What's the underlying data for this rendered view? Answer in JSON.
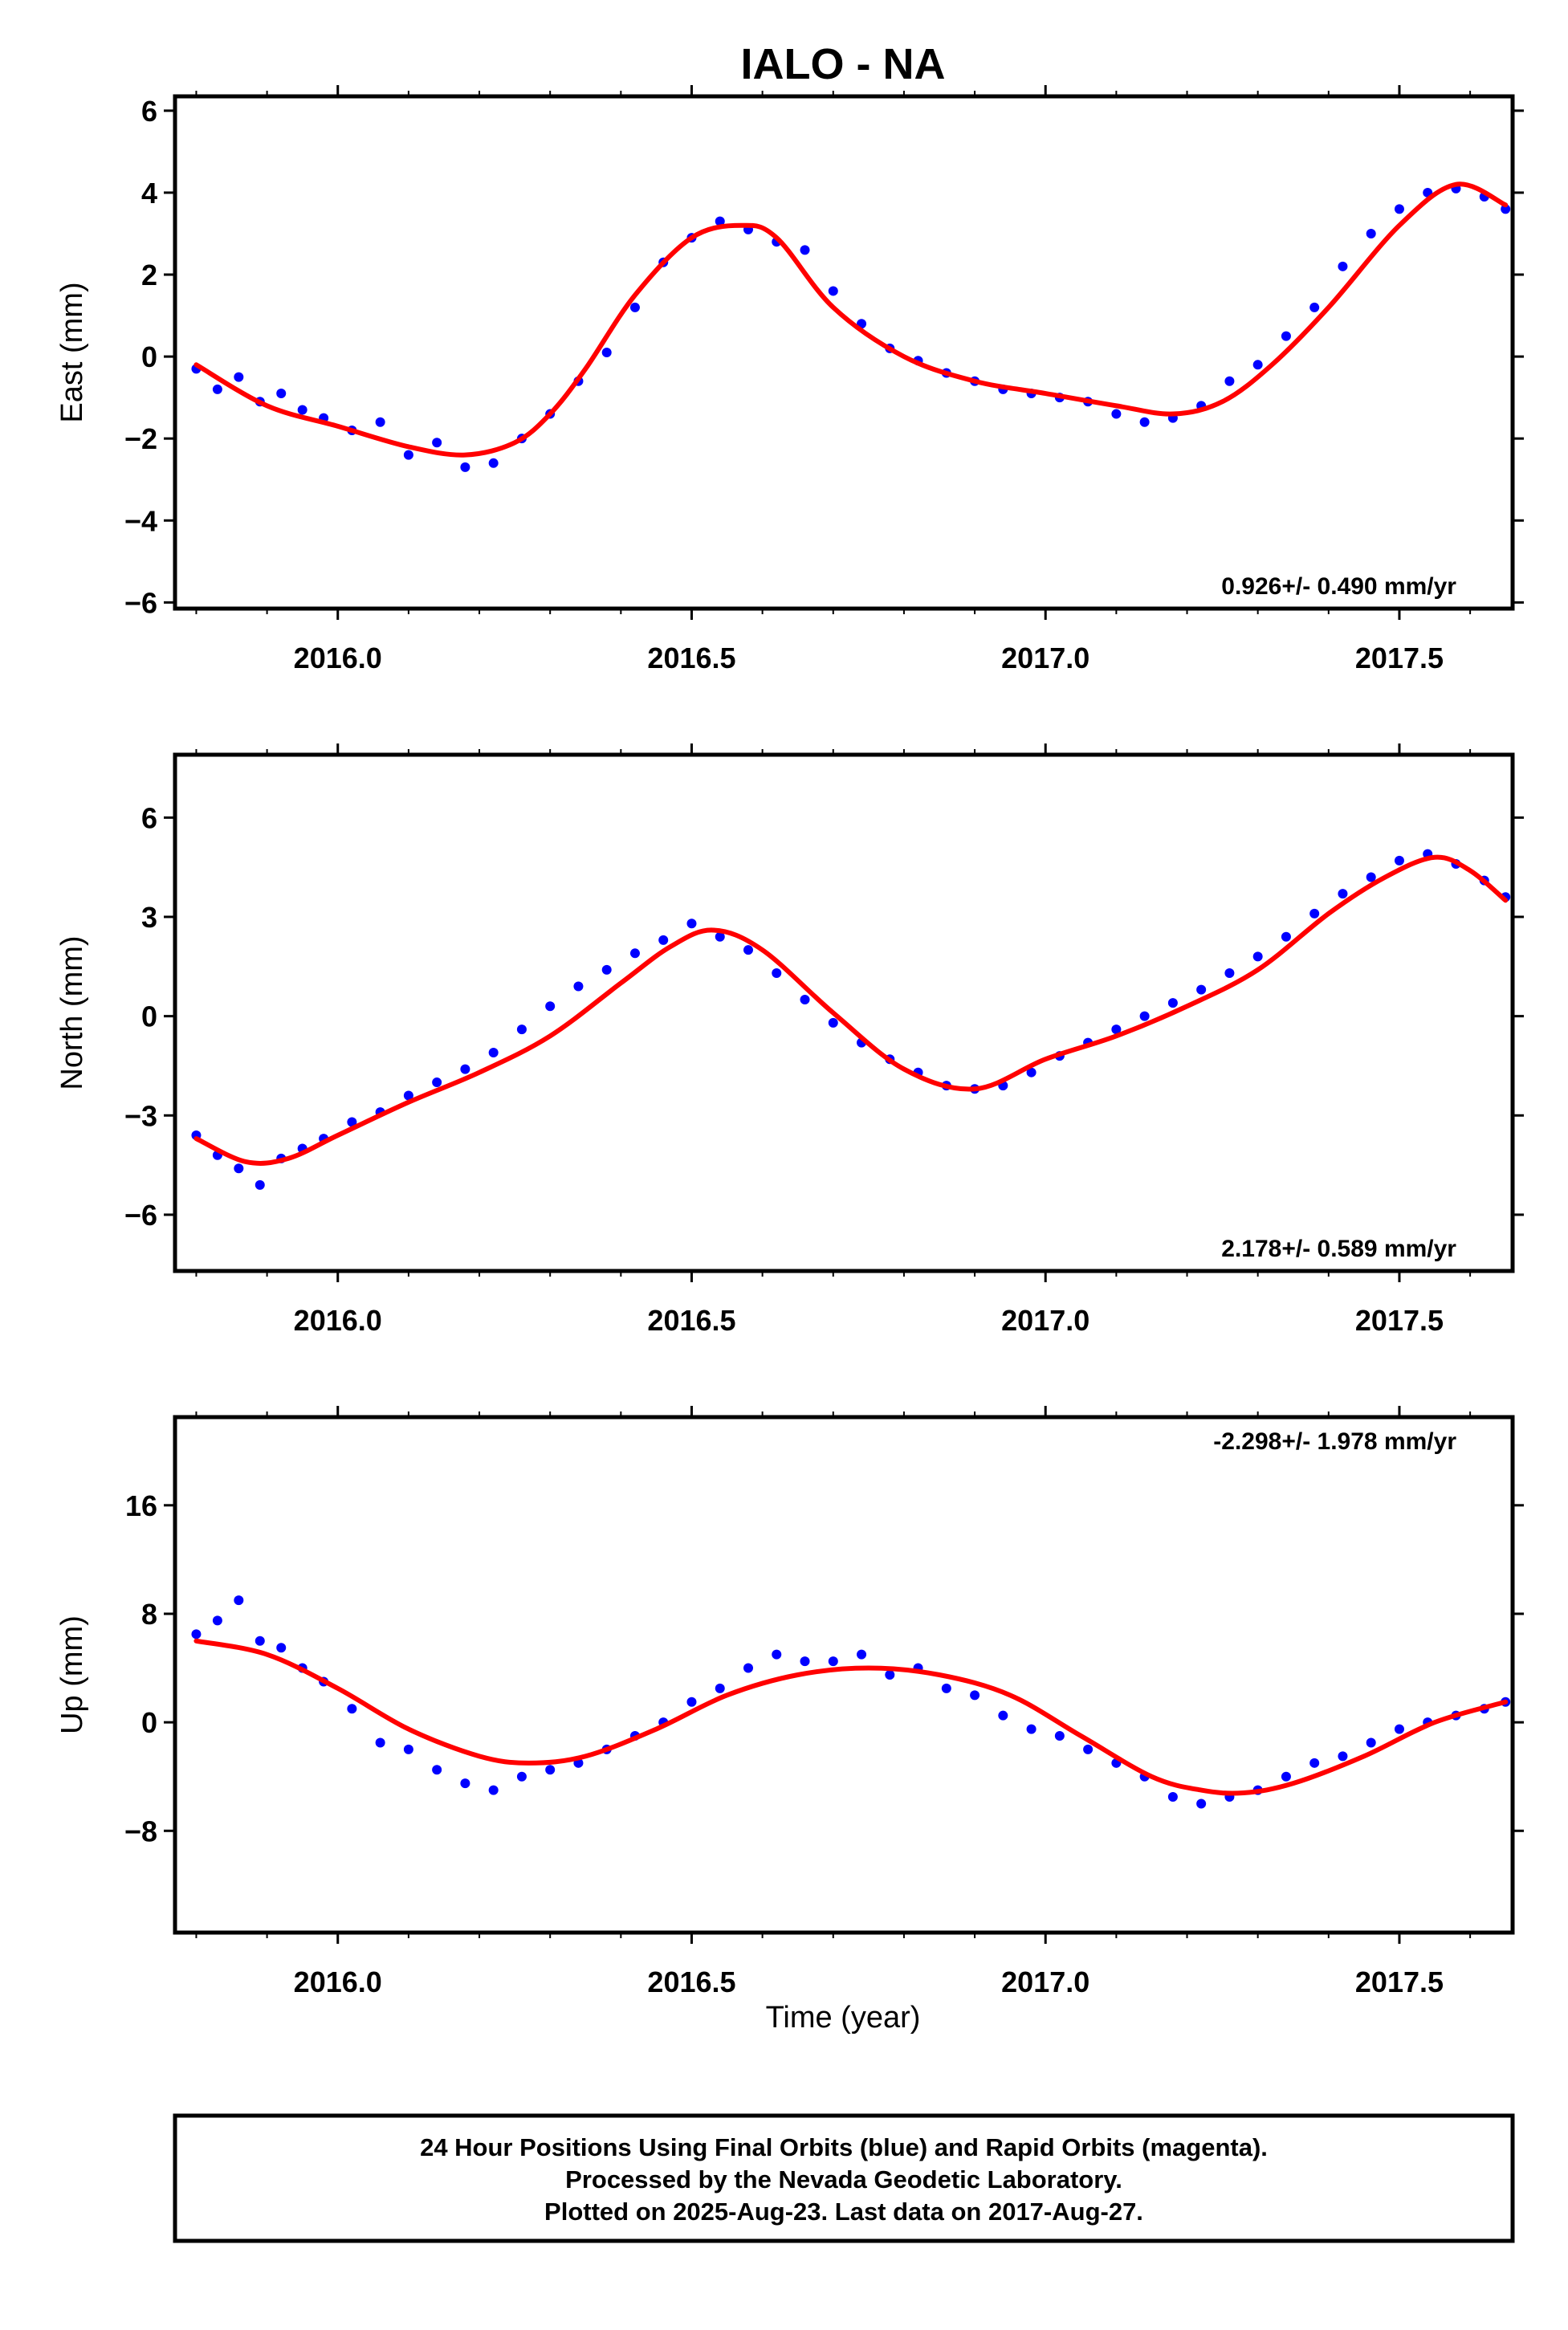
{
  "title": "IALO - NA",
  "xlabel": "Time (year)",
  "footer": {
    "line1": "24 Hour Positions Using Final Orbits (blue) and Rapid Orbits (magenta).",
    "line2": "Processed by the Nevada Geodetic Laboratory.",
    "line3": "Plotted on 2025-Aug-23. Last data on 2017-Aug-27."
  },
  "colors": {
    "points": "#0000ff",
    "fit": "#ff0000",
    "frame": "#000000"
  },
  "chart_data": [
    {
      "type": "scatter",
      "ylabel": "East (mm)",
      "rate_label": "0.926+/- 0.490 mm/yr",
      "rate_position": "bottom-right",
      "xlim": [
        2015.77,
        2017.66
      ],
      "ylim": [
        -6.15,
        6.35
      ],
      "xticks": [
        2016.0,
        2016.5,
        2017.0,
        2017.5
      ],
      "xtick_labels": [
        "2016.0",
        "2016.5",
        "2017.0",
        "2017.5"
      ],
      "yticks": [
        -6,
        -4,
        -2,
        0,
        2,
        4,
        6
      ],
      "ytick_labels": [
        "−6",
        "−4",
        "−2",
        "0",
        "2",
        "4",
        "6"
      ],
      "grid": false,
      "series": [
        {
          "kind": "points",
          "x": [
            2015.8,
            2015.83,
            2015.86,
            2015.89,
            2015.92,
            2015.95,
            2015.98,
            2016.02,
            2016.06,
            2016.1,
            2016.14,
            2016.18,
            2016.22,
            2016.26,
            2016.3,
            2016.34,
            2016.38,
            2016.42,
            2016.46,
            2016.5,
            2016.54,
            2016.58,
            2016.62,
            2016.66,
            2016.7,
            2016.74,
            2016.78,
            2016.82,
            2016.86,
            2016.9,
            2016.94,
            2016.98,
            2017.02,
            2017.06,
            2017.1,
            2017.14,
            2017.18,
            2017.22,
            2017.26,
            2017.3,
            2017.34,
            2017.38,
            2017.42,
            2017.46,
            2017.5,
            2017.54,
            2017.58,
            2017.62,
            2017.65
          ],
          "y": [
            -0.3,
            -0.8,
            -0.5,
            -1.1,
            -0.9,
            -1.3,
            -1.5,
            -1.8,
            -1.6,
            -2.4,
            -2.1,
            -2.7,
            -2.6,
            -2.0,
            -1.4,
            -0.6,
            0.1,
            1.2,
            2.3,
            2.9,
            3.3,
            3.1,
            2.8,
            2.6,
            1.6,
            0.8,
            0.2,
            -0.1,
            -0.4,
            -0.6,
            -0.8,
            -0.9,
            -1.0,
            -1.1,
            -1.4,
            -1.6,
            -1.5,
            -1.2,
            -0.6,
            -0.2,
            0.5,
            1.2,
            2.2,
            3.0,
            3.6,
            4.0,
            4.1,
            3.9,
            3.6
          ]
        },
        {
          "kind": "fit",
          "x": [
            2015.8,
            2015.9,
            2016.0,
            2016.1,
            2016.18,
            2016.25,
            2016.3,
            2016.35,
            2016.42,
            2016.5,
            2016.57,
            2016.62,
            2016.7,
            2016.8,
            2016.9,
            2017.0,
            2017.1,
            2017.18,
            2017.25,
            2017.32,
            2017.4,
            2017.5,
            2017.58,
            2017.65
          ],
          "y": [
            -0.2,
            -1.2,
            -1.7,
            -2.2,
            -2.4,
            -2.1,
            -1.4,
            -0.3,
            1.5,
            2.9,
            3.2,
            2.9,
            1.2,
            0.0,
            -0.6,
            -0.9,
            -1.2,
            -1.4,
            -1.1,
            -0.2,
            1.2,
            3.2,
            4.2,
            3.7
          ]
        }
      ]
    },
    {
      "type": "scatter",
      "ylabel": "North (mm)",
      "rate_label": "2.178+/- 0.589 mm/yr",
      "rate_position": "bottom-right",
      "xlim": [
        2015.77,
        2017.66
      ],
      "ylim": [
        -7.7,
        7.9
      ],
      "xticks": [
        2016.0,
        2016.5,
        2017.0,
        2017.5
      ],
      "xtick_labels": [
        "2016.0",
        "2016.5",
        "2017.0",
        "2017.5"
      ],
      "yticks": [
        -6,
        -3,
        0,
        3,
        6
      ],
      "ytick_labels": [
        "−6",
        "−3",
        "0",
        "3",
        "6"
      ],
      "grid": false,
      "series": [
        {
          "kind": "points",
          "x": [
            2015.8,
            2015.83,
            2015.86,
            2015.89,
            2015.92,
            2015.95,
            2015.98,
            2016.02,
            2016.06,
            2016.1,
            2016.14,
            2016.18,
            2016.22,
            2016.26,
            2016.3,
            2016.34,
            2016.38,
            2016.42,
            2016.46,
            2016.5,
            2016.54,
            2016.58,
            2016.62,
            2016.66,
            2016.7,
            2016.74,
            2016.78,
            2016.82,
            2016.86,
            2016.9,
            2016.94,
            2016.98,
            2017.02,
            2017.06,
            2017.1,
            2017.14,
            2017.18,
            2017.22,
            2017.26,
            2017.3,
            2017.34,
            2017.38,
            2017.42,
            2017.46,
            2017.5,
            2017.54,
            2017.58,
            2017.62,
            2017.65
          ],
          "y": [
            -3.6,
            -4.2,
            -4.6,
            -5.1,
            -4.3,
            -4.0,
            -3.7,
            -3.2,
            -2.9,
            -2.4,
            -2.0,
            -1.6,
            -1.1,
            -0.4,
            0.3,
            0.9,
            1.4,
            1.9,
            2.3,
            2.8,
            2.4,
            2.0,
            1.3,
            0.5,
            -0.2,
            -0.8,
            -1.3,
            -1.7,
            -2.1,
            -2.2,
            -2.1,
            -1.7,
            -1.2,
            -0.8,
            -0.4,
            0.0,
            0.4,
            0.8,
            1.3,
            1.8,
            2.4,
            3.1,
            3.7,
            4.2,
            4.7,
            4.9,
            4.6,
            4.1,
            3.6
          ]
        },
        {
          "kind": "fit",
          "x": [
            2015.8,
            2015.87,
            2015.93,
            2016.0,
            2016.1,
            2016.2,
            2016.3,
            2016.4,
            2016.47,
            2016.53,
            2016.6,
            2016.7,
            2016.8,
            2016.9,
            2017.0,
            2017.1,
            2017.2,
            2017.3,
            2017.4,
            2017.48,
            2017.55,
            2017.6,
            2017.65
          ],
          "y": [
            -3.7,
            -4.4,
            -4.3,
            -3.6,
            -2.6,
            -1.7,
            -0.6,
            1.0,
            2.1,
            2.6,
            2.0,
            0.1,
            -1.6,
            -2.2,
            -1.3,
            -0.6,
            0.3,
            1.4,
            3.1,
            4.2,
            4.8,
            4.4,
            3.5
          ]
        }
      ]
    },
    {
      "type": "scatter",
      "ylabel": "Up (mm)",
      "rate_label": "-2.298+/- 1.978 mm/yr",
      "rate_position": "top-right",
      "xlim": [
        2015.77,
        2017.66
      ],
      "ylim": [
        -15.5,
        22.5
      ],
      "xticks": [
        2016.0,
        2016.5,
        2017.0,
        2017.5
      ],
      "xtick_labels": [
        "2016.0",
        "2016.5",
        "2017.0",
        "2017.5"
      ],
      "yticks": [
        -8,
        0,
        8,
        16
      ],
      "ytick_labels": [
        "−8",
        "0",
        "8",
        "16"
      ],
      "grid": false,
      "series": [
        {
          "kind": "points",
          "x": [
            2015.8,
            2015.83,
            2015.86,
            2015.89,
            2015.92,
            2015.95,
            2015.98,
            2016.02,
            2016.06,
            2016.1,
            2016.14,
            2016.18,
            2016.22,
            2016.26,
            2016.3,
            2016.34,
            2016.38,
            2016.42,
            2016.46,
            2016.5,
            2016.54,
            2016.58,
            2016.62,
            2016.66,
            2016.7,
            2016.74,
            2016.78,
            2016.82,
            2016.86,
            2016.9,
            2016.94,
            2016.98,
            2017.02,
            2017.06,
            2017.1,
            2017.14,
            2017.18,
            2017.22,
            2017.26,
            2017.3,
            2017.34,
            2017.38,
            2017.42,
            2017.46,
            2017.5,
            2017.54,
            2017.58,
            2017.62,
            2017.65
          ],
          "y": [
            6.5,
            7.5,
            9.0,
            6.0,
            5.5,
            4.0,
            3.0,
            1.0,
            -1.5,
            -2.0,
            -3.5,
            -4.5,
            -5.0,
            -4.0,
            -3.5,
            -3.0,
            -2.0,
            -1.0,
            0.0,
            1.5,
            2.5,
            4.0,
            5.0,
            4.5,
            4.5,
            5.0,
            3.5,
            4.0,
            2.5,
            2.0,
            0.5,
            -0.5,
            -1.0,
            -2.0,
            -3.0,
            -4.0,
            -5.5,
            -6.0,
            -5.5,
            -5.0,
            -4.0,
            -3.0,
            -2.5,
            -1.5,
            -0.5,
            0.0,
            0.5,
            1.0,
            1.5
          ]
        },
        {
          "kind": "fit",
          "x": [
            2015.8,
            2015.9,
            2016.0,
            2016.1,
            2016.2,
            2016.27,
            2016.35,
            2016.45,
            2016.55,
            2016.65,
            2016.75,
            2016.85,
            2016.95,
            2017.05,
            2017.15,
            2017.22,
            2017.28,
            2017.35,
            2017.45,
            2017.55,
            2017.65
          ],
          "y": [
            6.0,
            5.0,
            2.5,
            -0.5,
            -2.5,
            -3.0,
            -2.5,
            -0.5,
            2.0,
            3.5,
            4.0,
            3.5,
            2.0,
            -1.0,
            -4.0,
            -5.0,
            -5.2,
            -4.5,
            -2.5,
            0.0,
            1.5
          ]
        }
      ]
    }
  ]
}
